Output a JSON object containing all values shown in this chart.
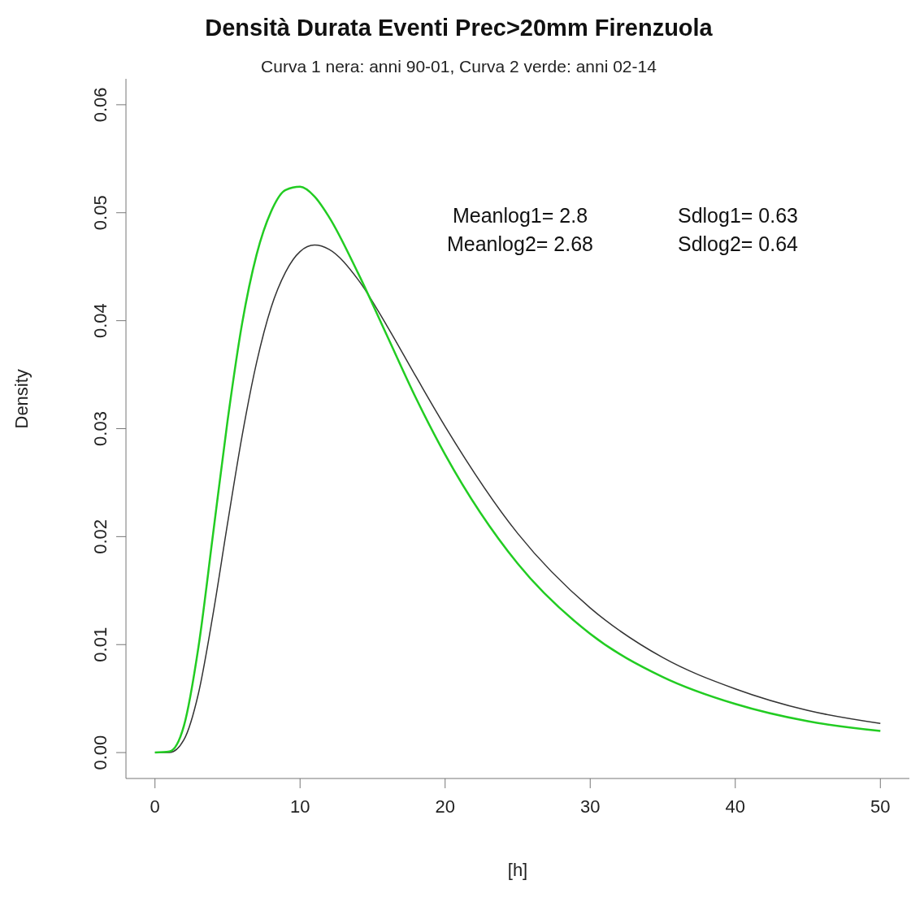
{
  "chart_data": {
    "type": "line",
    "title": "Densità Durata Eventi Prec>20mm Firenzuola",
    "subtitle": "Curva 1 nera: anni 90-01, Curva 2 verde: anni 02-14",
    "xlabel": "[h]",
    "ylabel": "Density",
    "annotations": [
      "Meanlog1= 2.8",
      "Sdlog1= 0.63",
      "Meanlog2= 2.68",
      "Sdlog2= 0.64"
    ],
    "x": [
      0,
      1,
      2,
      3,
      4,
      5,
      6,
      7,
      8,
      9,
      10,
      11,
      12,
      14,
      16,
      18,
      20,
      25,
      30,
      35,
      40,
      45,
      50
    ],
    "series": [
      {
        "color": "#333333",
        "values": [
          0,
          0,
          0.0012,
          0.0055,
          0.0128,
          0.0212,
          0.0293,
          0.0361,
          0.0412,
          0.0445,
          0.0464,
          0.047,
          0.0466,
          0.0438,
          0.0395,
          0.0348,
          0.0302,
          0.0203,
          0.0134,
          0.0088,
          0.0059,
          0.0039,
          0.0027
        ]
      },
      {
        "color": "#22cc22",
        "values": [
          0,
          0.0001,
          0.0025,
          0.0098,
          0.0202,
          0.0307,
          0.0397,
          0.0461,
          0.0501,
          0.0521,
          0.0524,
          0.0515,
          0.0496,
          0.0444,
          0.0386,
          0.0328,
          0.0276,
          0.0175,
          0.011,
          0.007,
          0.0045,
          0.0029,
          0.002
        ]
      }
    ],
    "xlim": [
      -2,
      52
    ],
    "xticks": [
      0,
      10,
      20,
      30,
      40,
      50
    ],
    "ylim": [
      -0.0024,
      0.0624
    ],
    "yticks": [
      {
        "value": 0,
        "label": "0.00"
      },
      {
        "value": 0.01,
        "label": "0.01"
      },
      {
        "value": 0.02,
        "label": "0.02"
      },
      {
        "value": 0.03,
        "label": "0.03"
      },
      {
        "value": 0.04,
        "label": "0.04"
      },
      {
        "value": 0.05,
        "label": "0.05"
      },
      {
        "value": 0.06,
        "label": "0.06"
      }
    ],
    "grid": false,
    "legend": false,
    "marker": "none",
    "line_style": "solid"
  }
}
